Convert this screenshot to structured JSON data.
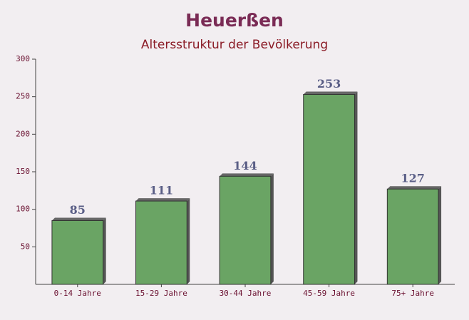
{
  "chart_data": {
    "type": "bar",
    "title": "Heuerßen",
    "subtitle": "Altersstruktur der Bevölkerung",
    "categories": [
      "0-14 Jahre",
      "15-29 Jahre",
      "30-44 Jahre",
      "45-59 Jahre",
      "75+ Jahre"
    ],
    "values": [
      85,
      111,
      144,
      253,
      127
    ],
    "color": "#6aa464",
    "ylim": [
      0,
      300
    ],
    "yticks": [
      50,
      100,
      150,
      200,
      250,
      300
    ]
  }
}
